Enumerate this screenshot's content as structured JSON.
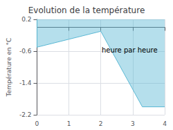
{
  "chart_data": {
    "type": "area",
    "title": "Evolution de la température",
    "xlabel": "heure par heure",
    "ylabel": "Température en °C",
    "x": [
      0,
      0,
      1,
      2,
      3.3,
      4
    ],
    "values": [
      0.2,
      -0.5,
      -0.3,
      -0.1,
      -2.0,
      -2.0
    ],
    "color": "#5bb8d4",
    "xlim": [
      0,
      4
    ],
    "xticks": [
      0,
      1,
      2,
      3,
      4
    ],
    "ylim": [
      -2.2,
      0.2
    ],
    "yticks": [
      0.2,
      -0.6,
      -1.4,
      -2.2
    ],
    "grid": true
  }
}
